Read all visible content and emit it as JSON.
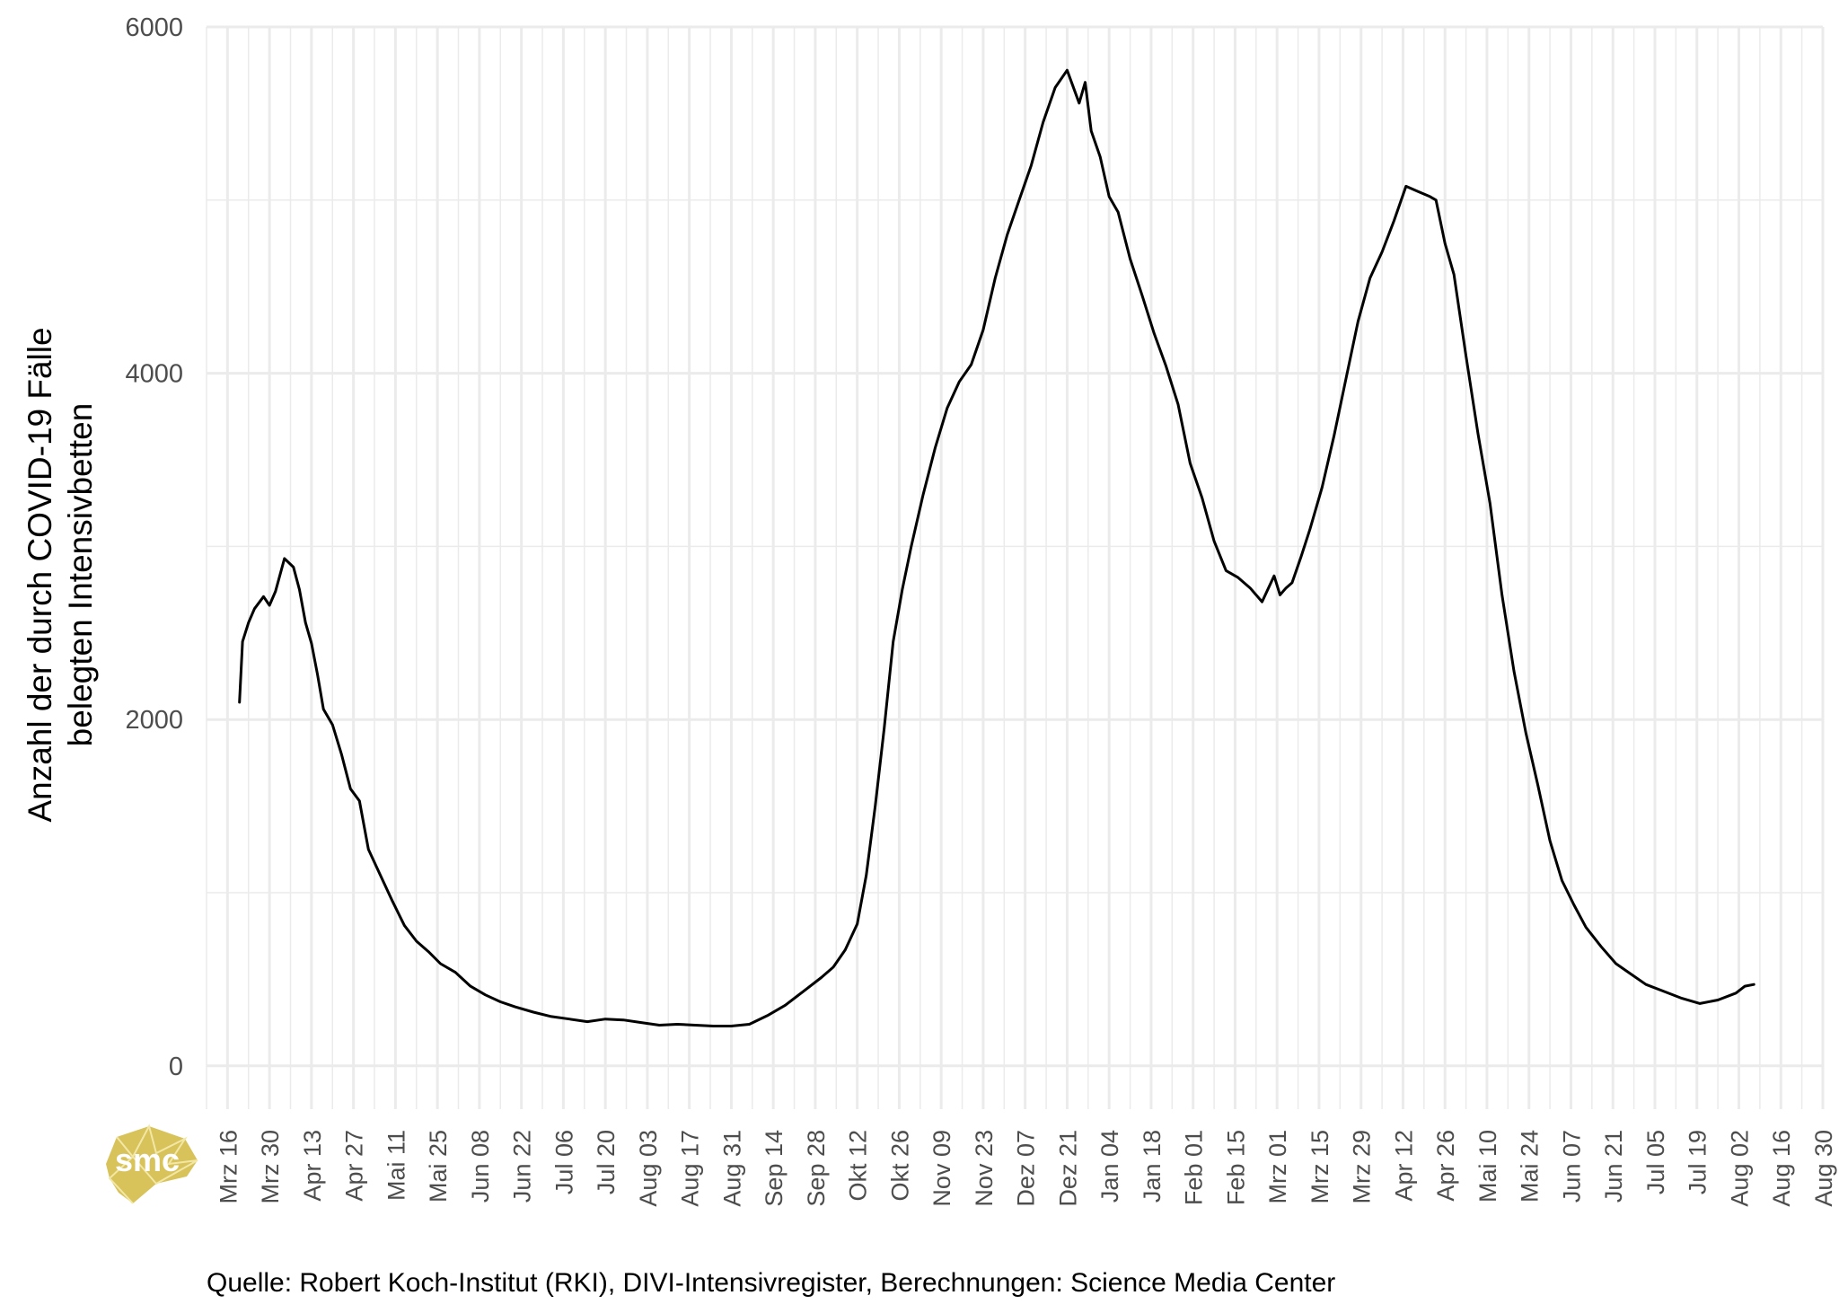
{
  "chart_data": {
    "type": "line",
    "ylabel": [
      "Anzahl der durch COVID-19 Fälle",
      "belegten Intensivbetten"
    ],
    "xlabel": "",
    "caption": "Quelle: Robert Koch-Institut (RKI), DIVI-Intensivregister, Berechnungen: Science Media Center",
    "ylim": [
      -250,
      6000
    ],
    "yticks": [
      0,
      2000,
      4000,
      6000
    ],
    "ytick_labels": [
      "0",
      "2000",
      "4000",
      "6000"
    ],
    "xlim": [
      "2020-03-09",
      "2021-08-30"
    ],
    "xticks": [
      "2020-03-16",
      "2020-03-30",
      "2020-04-13",
      "2020-04-27",
      "2020-05-11",
      "2020-05-25",
      "2020-06-08",
      "2020-06-22",
      "2020-07-06",
      "2020-07-20",
      "2020-08-03",
      "2020-08-17",
      "2020-08-31",
      "2020-09-14",
      "2020-09-28",
      "2020-10-12",
      "2020-10-26",
      "2020-11-09",
      "2020-11-23",
      "2020-12-07",
      "2020-12-21",
      "2021-01-04",
      "2021-01-18",
      "2021-02-01",
      "2021-02-15",
      "2021-03-01",
      "2021-03-15",
      "2021-03-29",
      "2021-04-12",
      "2021-04-26",
      "2021-05-10",
      "2021-05-24",
      "2021-06-07",
      "2021-06-21",
      "2021-07-05",
      "2021-07-19",
      "2021-08-02",
      "2021-08-16",
      "2021-08-30"
    ],
    "xtick_labels": [
      "Mrz 16",
      "Mrz 30",
      "Apr 13",
      "Apr 27",
      "Mai 11",
      "Mai 25",
      "Jun 08",
      "Jun 22",
      "Jul 06",
      "Jul 20",
      "Aug 03",
      "Aug 17",
      "Aug 31",
      "Sep 14",
      "Sep 28",
      "Okt 12",
      "Okt 26",
      "Nov 09",
      "Nov 23",
      "Dez 07",
      "Dez 21",
      "Jan 04",
      "Jan 18",
      "Feb 01",
      "Feb 15",
      "Mrz 01",
      "Mrz 15",
      "Mrz 29",
      "Apr 12",
      "Apr 26",
      "Mai 10",
      "Mai 24",
      "Jun 07",
      "Jun 21",
      "Jul 05",
      "Jul 19",
      "Aug 02",
      "Aug 16",
      "Aug 30"
    ],
    "grid": true,
    "series": [
      {
        "color": "#000000",
        "x": [
          "2020-03-20",
          "2020-03-21",
          "2020-03-23",
          "2020-03-25",
          "2020-03-28",
          "2020-03-30",
          "2020-04-01",
          "2020-04-04",
          "2020-04-07",
          "2020-04-09",
          "2020-04-11",
          "2020-04-13",
          "2020-04-15",
          "2020-04-17",
          "2020-04-20",
          "2020-04-23",
          "2020-04-26",
          "2020-04-29",
          "2020-05-02",
          "2020-05-06",
          "2020-05-10",
          "2020-05-14",
          "2020-05-18",
          "2020-05-22",
          "2020-05-26",
          "2020-05-31",
          "2020-06-05",
          "2020-06-10",
          "2020-06-15",
          "2020-06-20",
          "2020-06-26",
          "2020-07-02",
          "2020-07-08",
          "2020-07-14",
          "2020-07-20",
          "2020-07-26",
          "2020-08-01",
          "2020-08-07",
          "2020-08-13",
          "2020-08-19",
          "2020-08-25",
          "2020-08-31",
          "2020-09-06",
          "2020-09-12",
          "2020-09-18",
          "2020-09-24",
          "2020-09-30",
          "2020-10-04",
          "2020-10-08",
          "2020-10-12",
          "2020-10-15",
          "2020-10-18",
          "2020-10-21",
          "2020-10-24",
          "2020-10-27",
          "2020-10-30",
          "2020-11-03",
          "2020-11-07",
          "2020-11-11",
          "2020-11-15",
          "2020-11-19",
          "2020-11-23",
          "2020-11-27",
          "2020-12-01",
          "2020-12-05",
          "2020-12-09",
          "2020-12-13",
          "2020-12-17",
          "2020-12-21",
          "2020-12-25",
          "2020-12-27",
          "2020-12-29",
          "2021-01-01",
          "2021-01-04",
          "2021-01-07",
          "2021-01-11",
          "2021-01-15",
          "2021-01-19",
          "2021-01-23",
          "2021-01-27",
          "2021-01-31",
          "2021-02-04",
          "2021-02-08",
          "2021-02-12",
          "2021-02-16",
          "2021-02-20",
          "2021-02-24",
          "2021-02-28",
          "2021-03-02",
          "2021-03-04",
          "2021-03-06",
          "2021-03-09",
          "2021-03-12",
          "2021-03-16",
          "2021-03-20",
          "2021-03-24",
          "2021-03-28",
          "2021-04-01",
          "2021-04-05",
          "2021-04-09",
          "2021-04-13",
          "2021-04-17",
          "2021-04-21",
          "2021-04-23",
          "2021-04-26",
          "2021-04-29",
          "2021-05-03",
          "2021-05-07",
          "2021-05-11",
          "2021-05-15",
          "2021-05-19",
          "2021-05-23",
          "2021-05-27",
          "2021-05-31",
          "2021-06-04",
          "2021-06-08",
          "2021-06-12",
          "2021-06-17",
          "2021-06-22",
          "2021-06-27",
          "2021-07-02",
          "2021-07-08",
          "2021-07-14",
          "2021-07-20",
          "2021-07-26",
          "2021-08-01",
          "2021-08-04",
          "2021-08-07"
        ],
        "values": [
          2100,
          2450,
          2560,
          2640,
          2710,
          2660,
          2740,
          2930,
          2880,
          2750,
          2560,
          2440,
          2260,
          2060,
          1970,
          1800,
          1600,
          1530,
          1250,
          1100,
          950,
          810,
          720,
          660,
          590,
          540,
          460,
          410,
          370,
          340,
          310,
          285,
          270,
          255,
          270,
          265,
          250,
          235,
          240,
          235,
          230,
          230,
          240,
          290,
          350,
          430,
          510,
          570,
          670,
          820,
          1100,
          1500,
          1950,
          2450,
          2750,
          3000,
          3300,
          3570,
          3800,
          3950,
          4050,
          4250,
          4550,
          4800,
          5000,
          5200,
          5450,
          5650,
          5750,
          5560,
          5680,
          5400,
          5250,
          5020,
          4930,
          4660,
          4450,
          4230,
          4040,
          3820,
          3480,
          3280,
          3030,
          2860,
          2820,
          2760,
          2680,
          2830,
          2720,
          2760,
          2790,
          2940,
          3100,
          3340,
          3640,
          3970,
          4300,
          4550,
          4700,
          4880,
          5080,
          5050,
          5020,
          5000,
          4750,
          4570,
          4100,
          3650,
          3250,
          2720,
          2280,
          1920,
          1620,
          1300,
          1070,
          930,
          800,
          690,
          590,
          530,
          470,
          430,
          390,
          360,
          380,
          420,
          460,
          470
        ]
      }
    ]
  }
}
